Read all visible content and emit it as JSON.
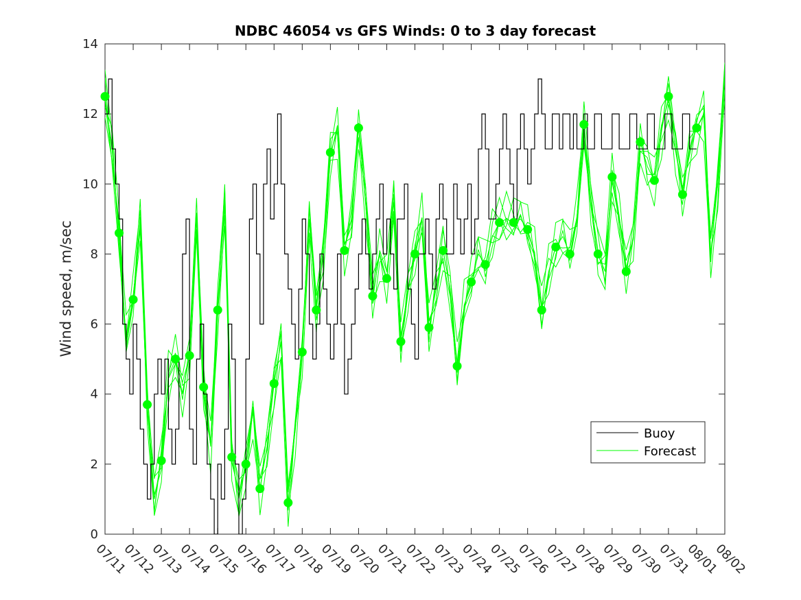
{
  "chart_data": {
    "type": "line",
    "title": "NDBC 46054 vs GFS Winds: 0 to 3 day forecast",
    "xlabel": "",
    "ylabel": "Wind speed, m/sec",
    "ylim": [
      0,
      14
    ],
    "yticks": [
      0,
      2,
      4,
      6,
      8,
      10,
      12,
      14
    ],
    "xlim": [
      "07/11",
      "08/02"
    ],
    "xticks": [
      "07/11",
      "07/12",
      "07/13",
      "07/14",
      "07/15",
      "07/16",
      "07/17",
      "07/18",
      "07/19",
      "07/20",
      "07/21",
      "07/22",
      "07/23",
      "07/24",
      "07/25",
      "07/26",
      "07/27",
      "07/28",
      "07/29",
      "07/30",
      "07/31",
      "08/01",
      "08/02"
    ],
    "grid": false,
    "legend_position": "lower-right",
    "colors": {
      "buoy": "#000000",
      "forecast": "#00ff00",
      "axes": "#262626"
    },
    "series": [
      {
        "name": "Buoy",
        "style": "black step line",
        "x": [
          0.0,
          0.125,
          0.25,
          0.375,
          0.5,
          0.625,
          0.75,
          0.875,
          1.0,
          1.125,
          1.25,
          1.375,
          1.5,
          1.625,
          1.75,
          1.875,
          2.0,
          2.125,
          2.25,
          2.375,
          2.5,
          2.625,
          2.75,
          2.875,
          3.0,
          3.125,
          3.25,
          3.375,
          3.5,
          3.625,
          3.75,
          3.875,
          4.0,
          4.125,
          4.25,
          4.375,
          4.5,
          4.625,
          4.75,
          4.875,
          5.0,
          5.125,
          5.25,
          5.375,
          5.5,
          5.625,
          5.75,
          5.875,
          6.0,
          6.125,
          6.25,
          6.375,
          6.5,
          6.625,
          6.75,
          6.875,
          7.0,
          7.125,
          7.25,
          7.375,
          7.5,
          7.625,
          7.75,
          7.875,
          8.0,
          8.125,
          8.25,
          8.375,
          8.5,
          8.625,
          8.75,
          8.875,
          9.0,
          9.125,
          9.25,
          9.375,
          9.5,
          9.625,
          9.75,
          9.875,
          10.0,
          10.125,
          10.25,
          10.375,
          10.5,
          10.625,
          10.75,
          10.875,
          11.0,
          11.125,
          11.25,
          11.375,
          11.5,
          11.625,
          11.75,
          11.875,
          12.0,
          12.125,
          12.25,
          12.375,
          12.5,
          12.625,
          12.75,
          12.875,
          13.0,
          13.125,
          13.25,
          13.375,
          13.5,
          13.625,
          13.75,
          13.875,
          14.0,
          14.125,
          14.25,
          14.375,
          14.5,
          14.625,
          14.75,
          14.875,
          15.0,
          15.125,
          15.25,
          15.375,
          15.5,
          15.625,
          15.75,
          15.875,
          16.0,
          16.125,
          16.25,
          16.375,
          16.5,
          16.625,
          16.75,
          16.875,
          17.0,
          17.125,
          17.25,
          17.375,
          17.5,
          17.625,
          17.75,
          17.875,
          18.0,
          18.125,
          18.25,
          18.375,
          18.5,
          18.625,
          18.75,
          18.875,
          19.0,
          19.125,
          19.25,
          19.375,
          19.5,
          19.625,
          19.75,
          19.875,
          20.0,
          20.125,
          20.25,
          20.375,
          20.5,
          20.625,
          20.75,
          20.875,
          21.0
        ],
        "values": [
          12,
          13,
          11,
          10,
          9,
          6,
          5,
          4,
          6,
          5,
          3,
          2,
          1,
          2,
          4,
          5,
          4,
          5,
          3,
          2,
          3,
          5,
          8,
          9,
          3,
          2,
          5,
          6,
          4,
          2,
          1,
          0,
          2,
          1,
          3,
          6,
          5,
          2,
          0,
          1,
          5,
          9,
          10,
          8,
          6,
          10,
          11,
          9,
          10,
          12,
          10,
          8,
          7,
          6,
          5,
          7,
          9,
          8,
          6,
          5,
          6,
          8,
          7,
          6,
          5,
          6,
          8,
          6,
          4,
          5,
          6,
          7,
          8,
          9,
          8,
          7,
          8,
          9,
          10,
          8,
          9,
          8,
          7,
          9,
          9,
          10,
          7,
          6,
          5,
          8,
          8,
          9,
          8,
          7,
          9,
          10,
          9,
          8,
          8,
          10,
          9,
          8,
          9,
          10,
          8,
          9,
          11,
          12,
          11,
          9,
          9,
          10,
          11,
          12,
          11,
          10,
          9,
          11,
          12,
          11,
          10,
          11,
          12,
          13,
          12,
          11,
          11,
          12,
          12,
          11,
          12,
          12,
          11,
          12,
          11,
          11,
          12,
          11,
          11,
          12,
          12,
          11,
          11,
          11,
          12,
          12,
          11,
          11,
          11,
          12,
          12,
          11,
          11,
          11,
          12,
          12,
          11,
          11,
          11,
          12,
          12,
          11,
          11,
          11,
          12,
          12,
          11,
          11,
          11
        ]
      },
      {
        "name": "Forecast",
        "style": "green ensemble lines with green markers at forecast analysis times",
        "x": [
          0.0,
          0.25,
          0.5,
          0.75,
          1.0,
          1.25,
          1.5,
          1.75,
          2.0,
          2.25,
          2.5,
          2.75,
          3.0,
          3.25,
          3.5,
          3.75,
          4.0,
          4.25,
          4.5,
          4.75,
          5.0,
          5.25,
          5.5,
          5.75,
          6.0,
          6.25,
          6.5,
          6.75,
          7.0,
          7.25,
          7.5,
          7.75,
          8.0,
          8.25,
          8.5,
          8.75,
          9.0,
          9.25,
          9.5,
          9.75,
          10.0,
          10.25,
          10.5,
          10.75,
          11.0,
          11.25,
          11.5,
          11.75,
          12.0,
          12.25,
          12.5,
          12.75,
          13.0,
          13.25,
          13.5,
          13.75,
          14.0,
          14.25,
          14.5,
          14.75,
          15.0,
          15.25,
          15.5,
          15.75,
          16.0,
          16.25,
          16.5,
          16.75,
          17.0,
          17.25,
          17.5,
          17.75,
          18.0,
          18.25,
          18.5,
          18.75,
          19.0,
          19.25,
          19.5,
          19.75,
          20.0,
          20.25,
          20.5,
          20.75,
          21.0,
          21.25,
          21.5,
          21.75,
          22.0
        ],
        "values": [
          12.5,
          11.0,
          8.6,
          5.5,
          6.7,
          9.0,
          3.7,
          1.0,
          2.1,
          4.5,
          5.0,
          4.0,
          5.1,
          9.0,
          4.2,
          2.5,
          6.4,
          9.5,
          2.2,
          1.0,
          2.0,
          3.5,
          1.3,
          2.5,
          4.3,
          5.5,
          0.9,
          3.0,
          5.2,
          9.0,
          6.4,
          8.0,
          10.9,
          11.5,
          8.1,
          9.0,
          11.6,
          9.5,
          6.8,
          8.0,
          7.3,
          9.5,
          5.5,
          7.0,
          8.0,
          9.0,
          5.9,
          7.0,
          8.1,
          7.0,
          4.8,
          6.5,
          7.2,
          8.0,
          7.7,
          8.5,
          8.9,
          9.0,
          8.9,
          9.0,
          8.7,
          8.0,
          6.4,
          7.5,
          8.2,
          8.5,
          8.0,
          9.0,
          11.7,
          9.5,
          8.0,
          7.5,
          10.2,
          9.0,
          7.5,
          8.5,
          11.2,
          10.5,
          10.1,
          11.5,
          12.5,
          11.0,
          9.7,
          11.0,
          11.6,
          12.0,
          8.0,
          10.0,
          13.0
        ],
        "marker_x": [
          0.0,
          0.5,
          1.0,
          1.5,
          2.0,
          2.5,
          3.0,
          3.5,
          4.0,
          4.5,
          5.0,
          5.5,
          6.0,
          6.5,
          7.0,
          7.5,
          8.0,
          8.5,
          9.0,
          9.5,
          10.0,
          10.5,
          11.0,
          11.5,
          12.0,
          12.5,
          13.0,
          13.5,
          14.0,
          14.5,
          15.0,
          15.5,
          16.0,
          16.5,
          17.0,
          17.5,
          18.0,
          18.5,
          19.0,
          19.5,
          20.0,
          20.5,
          21.0
        ],
        "marker_values": [
          12.5,
          8.6,
          6.7,
          3.7,
          2.1,
          5.0,
          5.1,
          4.2,
          6.4,
          2.2,
          2.0,
          1.3,
          4.3,
          0.9,
          5.2,
          6.4,
          10.9,
          8.1,
          11.6,
          6.8,
          7.3,
          5.5,
          8.0,
          5.9,
          8.1,
          4.8,
          7.2,
          7.7,
          8.9,
          8.9,
          8.7,
          6.4,
          8.2,
          8.0,
          11.7,
          8.0,
          10.2,
          7.5,
          11.2,
          10.1,
          12.5,
          9.7,
          11.6
        ]
      }
    ]
  }
}
